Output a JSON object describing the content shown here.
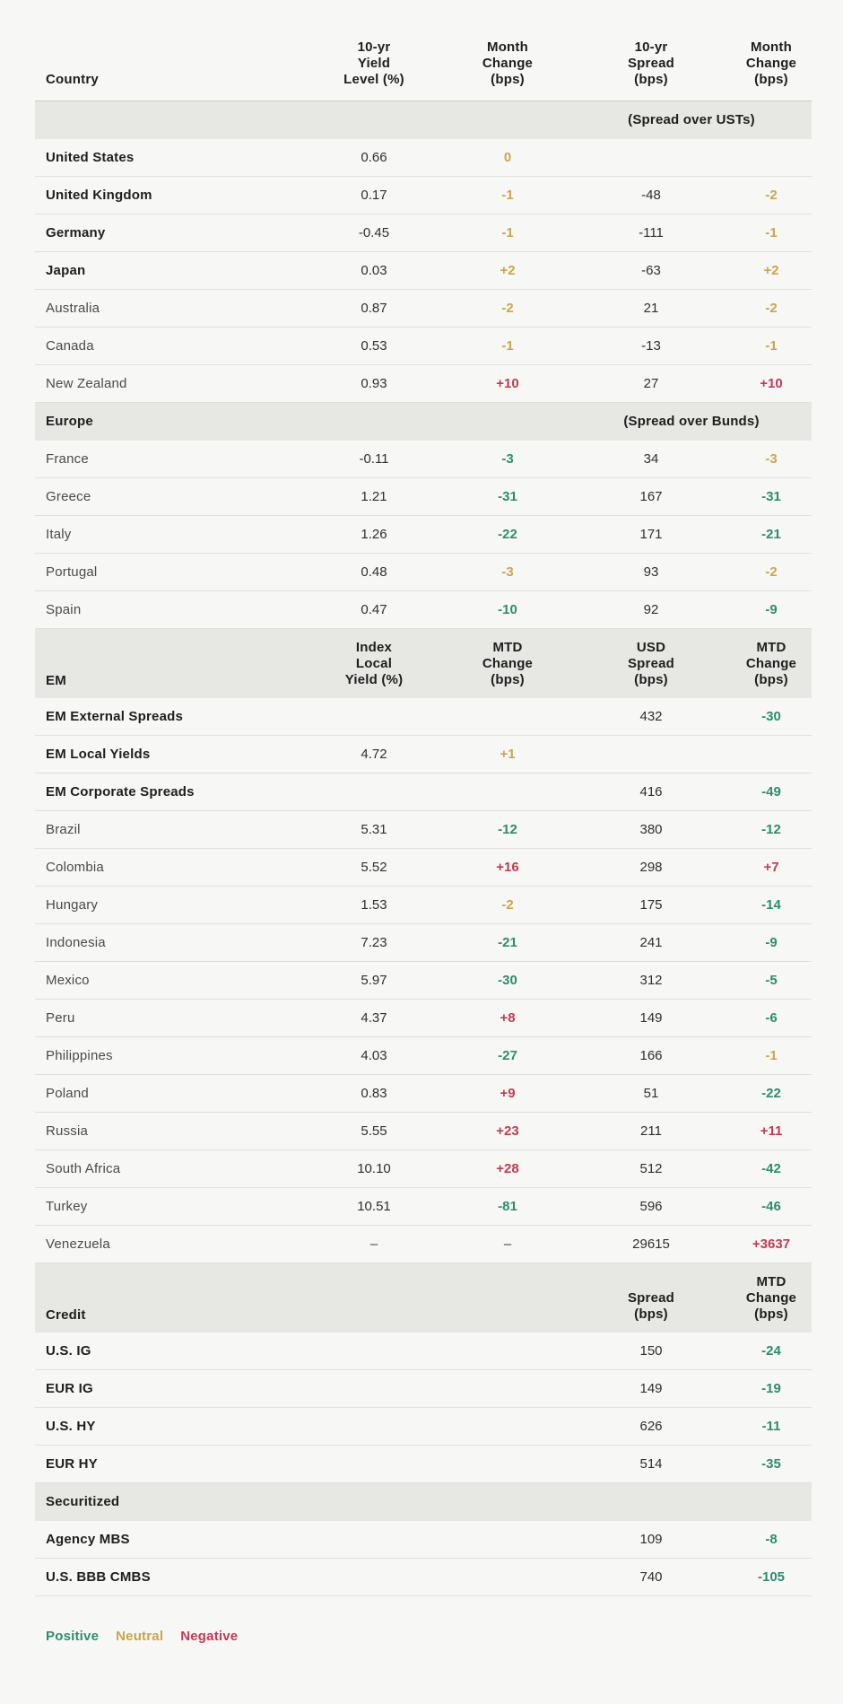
{
  "colors": {
    "positive": "#2B8D70",
    "neutral": "#C9A64C",
    "negative": "#C23A55",
    "background": "#F7F7F5",
    "band": "#E7E7E4"
  },
  "header": {
    "country": "Country",
    "columns": [
      [
        "10-yr",
        "Yield",
        "Level (%)"
      ],
      [
        "Month",
        "Change",
        "(bps)"
      ],
      [
        "10-yr",
        "Spread",
        "(bps)"
      ],
      [
        "Month",
        "Change",
        "(bps)"
      ]
    ]
  },
  "sections": [
    {
      "band": {
        "label": "",
        "note": "(Spread over USTs)"
      },
      "rows": [
        {
          "label": "United States",
          "bold": true,
          "cells": [
            [
              "0.66",
              "plain"
            ],
            [
              "0",
              "neu"
            ],
            [
              "",
              ""
            ],
            [
              "",
              ""
            ]
          ]
        },
        {
          "label": "United Kingdom",
          "bold": true,
          "cells": [
            [
              "0.17",
              "plain"
            ],
            [
              "-1",
              "neu"
            ],
            [
              "-48",
              "plain"
            ],
            [
              "-2",
              "neu"
            ]
          ]
        },
        {
          "label": "Germany",
          "bold": true,
          "cells": [
            [
              "-0.45",
              "plain"
            ],
            [
              "-1",
              "neu"
            ],
            [
              "-111",
              "plain"
            ],
            [
              "-1",
              "neu"
            ]
          ]
        },
        {
          "label": "Japan",
          "bold": true,
          "cells": [
            [
              "0.03",
              "plain"
            ],
            [
              "+2",
              "neu"
            ],
            [
              "-63",
              "plain"
            ],
            [
              "+2",
              "neu"
            ]
          ]
        },
        {
          "label": "Australia",
          "bold": false,
          "cells": [
            [
              "0.87",
              "plain"
            ],
            [
              "-2",
              "neu"
            ],
            [
              "21",
              "plain"
            ],
            [
              "-2",
              "neu"
            ]
          ]
        },
        {
          "label": "Canada",
          "bold": false,
          "cells": [
            [
              "0.53",
              "plain"
            ],
            [
              "-1",
              "neu"
            ],
            [
              "-13",
              "plain"
            ],
            [
              "-1",
              "neu"
            ]
          ]
        },
        {
          "label": "New Zealand",
          "bold": false,
          "cells": [
            [
              "0.93",
              "plain"
            ],
            [
              "+10",
              "neg"
            ],
            [
              "27",
              "plain"
            ],
            [
              "+10",
              "neg"
            ]
          ]
        }
      ]
    },
    {
      "band": {
        "label": "Europe",
        "note": "(Spread over Bunds)"
      },
      "rows": [
        {
          "label": "France",
          "bold": false,
          "cells": [
            [
              "-0.11",
              "plain"
            ],
            [
              "-3",
              "pos"
            ],
            [
              "34",
              "plain"
            ],
            [
              "-3",
              "neu"
            ]
          ]
        },
        {
          "label": "Greece",
          "bold": false,
          "cells": [
            [
              "1.21",
              "plain"
            ],
            [
              "-31",
              "pos"
            ],
            [
              "167",
              "plain"
            ],
            [
              "-31",
              "pos"
            ]
          ]
        },
        {
          "label": "Italy",
          "bold": false,
          "cells": [
            [
              "1.26",
              "plain"
            ],
            [
              "-22",
              "pos"
            ],
            [
              "171",
              "plain"
            ],
            [
              "-21",
              "pos"
            ]
          ]
        },
        {
          "label": "Portugal",
          "bold": false,
          "cells": [
            [
              "0.48",
              "plain"
            ],
            [
              "-3",
              "neu"
            ],
            [
              "93",
              "plain"
            ],
            [
              "-2",
              "neu"
            ]
          ]
        },
        {
          "label": "Spain",
          "bold": false,
          "cells": [
            [
              "0.47",
              "plain"
            ],
            [
              "-10",
              "pos"
            ],
            [
              "92",
              "plain"
            ],
            [
              "-9",
              "pos"
            ]
          ]
        }
      ]
    },
    {
      "band": {
        "label": "EM",
        "headers": [
          [
            "Index",
            "Local",
            "Yield (%)"
          ],
          [
            "MTD",
            "Change",
            "(bps)"
          ],
          [
            "USD",
            "Spread",
            "(bps)"
          ],
          [
            "MTD",
            "Change",
            "(bps)"
          ]
        ]
      },
      "rows": [
        {
          "label": "EM External Spreads",
          "bold": true,
          "cells": [
            [
              "",
              ""
            ],
            [
              "",
              ""
            ],
            [
              "432",
              "plain"
            ],
            [
              "-30",
              "pos"
            ]
          ]
        },
        {
          "label": "EM Local Yields",
          "bold": true,
          "cells": [
            [
              "4.72",
              "plain"
            ],
            [
              "+1",
              "neu"
            ],
            [
              "",
              ""
            ],
            [
              "",
              ""
            ]
          ]
        },
        {
          "label": "EM Corporate Spreads",
          "bold": true,
          "cells": [
            [
              "",
              ""
            ],
            [
              "",
              ""
            ],
            [
              "416",
              "plain"
            ],
            [
              "-49",
              "pos"
            ]
          ]
        },
        {
          "label": "Brazil",
          "bold": false,
          "cells": [
            [
              "5.31",
              "plain"
            ],
            [
              "-12",
              "pos"
            ],
            [
              "380",
              "plain"
            ],
            [
              "-12",
              "pos"
            ]
          ]
        },
        {
          "label": "Colombia",
          "bold": false,
          "cells": [
            [
              "5.52",
              "plain"
            ],
            [
              "+16",
              "neg"
            ],
            [
              "298",
              "plain"
            ],
            [
              "+7",
              "neg"
            ]
          ]
        },
        {
          "label": "Hungary",
          "bold": false,
          "cells": [
            [
              "1.53",
              "plain"
            ],
            [
              "-2",
              "neu"
            ],
            [
              "175",
              "plain"
            ],
            [
              "-14",
              "pos"
            ]
          ]
        },
        {
          "label": "Indonesia",
          "bold": false,
          "cells": [
            [
              "7.23",
              "plain"
            ],
            [
              "-21",
              "pos"
            ],
            [
              "241",
              "plain"
            ],
            [
              "-9",
              "pos"
            ]
          ]
        },
        {
          "label": "Mexico",
          "bold": false,
          "cells": [
            [
              "5.97",
              "plain"
            ],
            [
              "-30",
              "pos"
            ],
            [
              "312",
              "plain"
            ],
            [
              "-5",
              "pos"
            ]
          ]
        },
        {
          "label": "Peru",
          "bold": false,
          "cells": [
            [
              "4.37",
              "plain"
            ],
            [
              "+8",
              "neg"
            ],
            [
              "149",
              "plain"
            ],
            [
              "-6",
              "pos"
            ]
          ]
        },
        {
          "label": "Philippines",
          "bold": false,
          "cells": [
            [
              "4.03",
              "plain"
            ],
            [
              "-27",
              "pos"
            ],
            [
              "166",
              "plain"
            ],
            [
              "-1",
              "neu"
            ]
          ]
        },
        {
          "label": "Poland",
          "bold": false,
          "cells": [
            [
              "0.83",
              "plain"
            ],
            [
              "+9",
              "neg"
            ],
            [
              "51",
              "plain"
            ],
            [
              "-22",
              "pos"
            ]
          ]
        },
        {
          "label": "Russia",
          "bold": false,
          "cells": [
            [
              "5.55",
              "plain"
            ],
            [
              "+23",
              "neg"
            ],
            [
              "211",
              "plain"
            ],
            [
              "+11",
              "neg"
            ]
          ]
        },
        {
          "label": "South Africa",
          "bold": false,
          "cells": [
            [
              "10.10",
              "plain"
            ],
            [
              "+28",
              "neg"
            ],
            [
              "512",
              "plain"
            ],
            [
              "-42",
              "pos"
            ]
          ]
        },
        {
          "label": "Turkey",
          "bold": false,
          "cells": [
            [
              "10.51",
              "plain"
            ],
            [
              "-81",
              "pos"
            ],
            [
              "596",
              "plain"
            ],
            [
              "-46",
              "pos"
            ]
          ]
        },
        {
          "label": "Venezuela",
          "bold": false,
          "cells": [
            [
              "–",
              "dash"
            ],
            [
              "–",
              "dash"
            ],
            [
              "29615",
              "plain"
            ],
            [
              "+3637",
              "neg"
            ]
          ]
        }
      ]
    },
    {
      "band": {
        "label": "Credit",
        "headers": [
          null,
          null,
          [
            "Spread",
            "(bps)"
          ],
          [
            "MTD",
            "Change",
            "(bps)"
          ]
        ]
      },
      "rows": [
        {
          "label": "U.S. IG",
          "bold": true,
          "cells": [
            [
              "",
              ""
            ],
            [
              "",
              ""
            ],
            [
              "150",
              "plain"
            ],
            [
              "-24",
              "pos"
            ]
          ]
        },
        {
          "label": "EUR IG",
          "bold": true,
          "cells": [
            [
              "",
              ""
            ],
            [
              "",
              ""
            ],
            [
              "149",
              "plain"
            ],
            [
              "-19",
              "pos"
            ]
          ]
        },
        {
          "label": "U.S. HY",
          "bold": true,
          "cells": [
            [
              "",
              ""
            ],
            [
              "",
              ""
            ],
            [
              "626",
              "plain"
            ],
            [
              "-11",
              "pos"
            ]
          ]
        },
        {
          "label": "EUR HY",
          "bold": true,
          "cells": [
            [
              "",
              ""
            ],
            [
              "",
              ""
            ],
            [
              "514",
              "plain"
            ],
            [
              "-35",
              "pos"
            ]
          ]
        }
      ]
    },
    {
      "band": {
        "label": "Securitized"
      },
      "rows": [
        {
          "label": "Agency MBS",
          "bold": true,
          "cells": [
            [
              "",
              ""
            ],
            [
              "",
              ""
            ],
            [
              "109",
              "plain"
            ],
            [
              "-8",
              "pos"
            ]
          ]
        },
        {
          "label": "U.S. BBB CMBS",
          "bold": true,
          "cells": [
            [
              "",
              ""
            ],
            [
              "",
              ""
            ],
            [
              "740",
              "plain"
            ],
            [
              "-105",
              "pos"
            ]
          ]
        }
      ]
    }
  ],
  "legend": [
    {
      "label": "Positive",
      "key": "pos"
    },
    {
      "label": "Neutral",
      "key": "neu"
    },
    {
      "label": "Negative",
      "key": "neg"
    }
  ]
}
